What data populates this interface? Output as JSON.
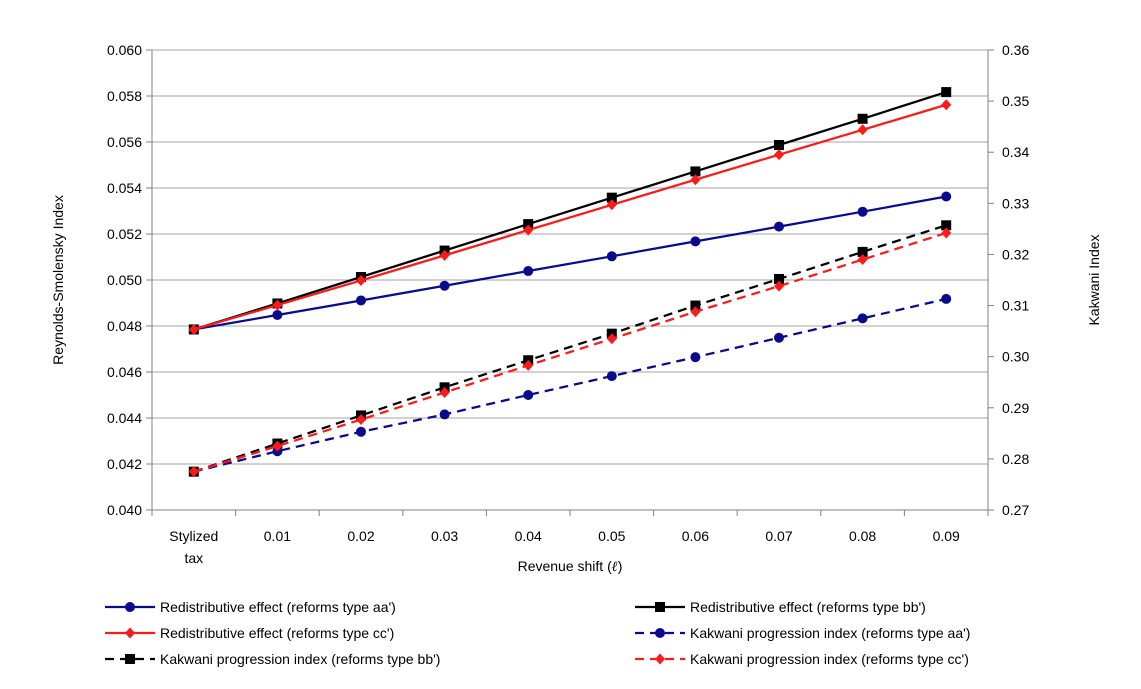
{
  "chart_data": {
    "type": "line",
    "categories": [
      [
        "Stylized",
        "tax"
      ],
      "0.01",
      "0.02",
      "0.03",
      "0.04",
      "0.05",
      "0.06",
      "0.07",
      "0.08",
      "0.09"
    ],
    "xlabel_prefix": "Revenue shift (",
    "xlabel_symbol": "ℓ",
    "xlabel_suffix": ")",
    "ylabel_left": "Reynolds-Smolensky Index",
    "ylabel_right": "Kakwani Index",
    "ylim_left": [
      0.04,
      0.06
    ],
    "ylim_right": [
      0.27,
      0.36
    ],
    "yticks_left": [
      "0.040",
      "0.042",
      "0.044",
      "0.046",
      "0.048",
      "0.050",
      "0.052",
      "0.054",
      "0.056",
      "0.058",
      "0.060"
    ],
    "yticks_right": [
      "0.27",
      "0.28",
      "0.29",
      "0.30",
      "0.31",
      "0.32",
      "0.33",
      "0.34",
      "0.35",
      "0.36"
    ],
    "grid": true,
    "legend_position": "bottom",
    "series": [
      {
        "name": "Redistributive effect (reforms type aa')",
        "axis": "left",
        "color": "#0a0a8c",
        "dash": false,
        "marker": "circle",
        "values": [
          0.04785,
          0.04848,
          0.04911,
          0.04975,
          0.05039,
          0.05103,
          0.05168,
          0.05232,
          0.05297,
          0.05363
        ]
      },
      {
        "name": "Redistributive effect (reforms type bb')",
        "axis": "left",
        "color": "#000000",
        "dash": false,
        "marker": "square",
        "values": [
          0.04785,
          0.04898,
          0.05013,
          0.05128,
          0.05243,
          0.05358,
          0.05472,
          0.05587,
          0.05701,
          0.05817
        ]
      },
      {
        "name": "Redistributive effect (reforms type cc')",
        "axis": "left",
        "color": "#ff1a1a",
        "dash": false,
        "marker": "diamond",
        "values": [
          0.04785,
          0.04891,
          0.04998,
          0.05107,
          0.05217,
          0.05327,
          0.05436,
          0.05545,
          0.05653,
          0.05762
        ]
      },
      {
        "name": "Kakwani progression index (reforms type aa')",
        "axis": "right",
        "color": "#0a0a8c",
        "dash": true,
        "marker": "circle",
        "values": [
          0.2775,
          0.2815,
          0.2853,
          0.2887,
          0.2925,
          0.2962,
          0.2999,
          0.3037,
          0.3075,
          0.3113
        ]
      },
      {
        "name": "Kakwani progression index (reforms type bb')",
        "axis": "right",
        "color": "#000000",
        "dash": true,
        "marker": "square",
        "values": [
          0.2775,
          0.283,
          0.2885,
          0.294,
          0.2993,
          0.3045,
          0.31,
          0.3152,
          0.3205,
          0.3257
        ]
      },
      {
        "name": "Kakwani progression index (reforms type cc')",
        "axis": "right",
        "color": "#ff1a1a",
        "dash": true,
        "marker": "diamond",
        "values": [
          0.2775,
          0.2825,
          0.2877,
          0.293,
          0.2983,
          0.3035,
          0.3088,
          0.3138,
          0.319,
          0.3242
        ]
      }
    ]
  }
}
